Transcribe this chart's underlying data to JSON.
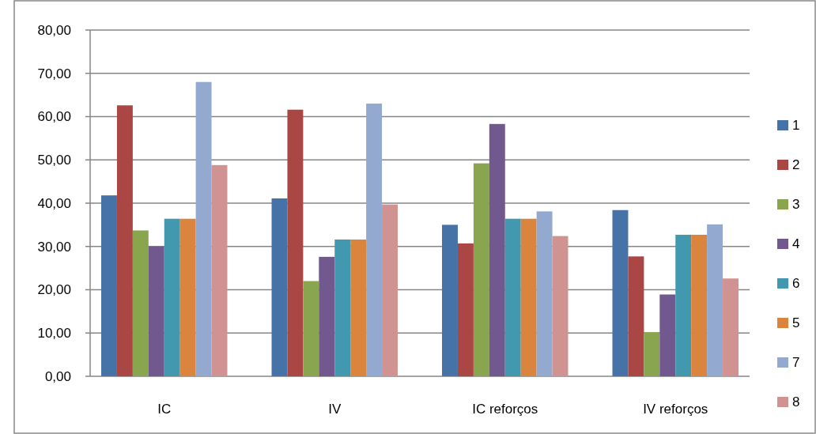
{
  "chart_data": {
    "type": "bar",
    "categories": [
      "IC",
      "IV",
      "IC reforços",
      "IV reforços"
    ],
    "series": [
      {
        "name": "1",
        "color": "#4572a7",
        "values": [
          41.8,
          41.1,
          35.0,
          38.4
        ]
      },
      {
        "name": "2",
        "color": "#aa4643",
        "values": [
          62.6,
          61.6,
          30.7,
          27.7
        ]
      },
      {
        "name": "3",
        "color": "#89a54e",
        "values": [
          33.7,
          22.0,
          49.2,
          10.2
        ]
      },
      {
        "name": "4",
        "color": "#71588f",
        "values": [
          30.0,
          27.6,
          58.3,
          18.9
        ]
      },
      {
        "name": "6",
        "color": "#4198af",
        "values": [
          36.4,
          31.6,
          36.4,
          32.7
        ]
      },
      {
        "name": "5",
        "color": "#db843d",
        "values": [
          36.4,
          31.6,
          36.4,
          32.7
        ]
      },
      {
        "name": "7",
        "color": "#93a9cf",
        "values": [
          68.0,
          63.0,
          38.1,
          35.1
        ]
      },
      {
        "name": "8",
        "color": "#d19392",
        "values": [
          48.8,
          39.7,
          32.4,
          22.6
        ]
      }
    ],
    "ylim": [
      0,
      80
    ],
    "yticks": [
      {
        "value": 0,
        "label": "0,00"
      },
      {
        "value": 10,
        "label": "10,00"
      },
      {
        "value": 20,
        "label": "20,00"
      },
      {
        "value": 30,
        "label": "30,00"
      },
      {
        "value": 40,
        "label": "40,00"
      },
      {
        "value": 50,
        "label": "50,00"
      },
      {
        "value": 60,
        "label": "60,00"
      },
      {
        "value": 70,
        "label": "70,00"
      },
      {
        "value": 80,
        "label": "80,00"
      }
    ],
    "grid": "y",
    "legend": "right"
  }
}
